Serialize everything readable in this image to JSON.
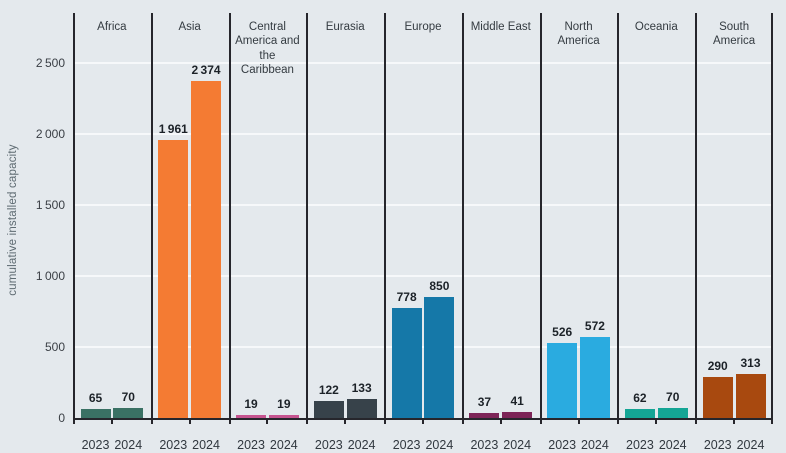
{
  "chart_data": {
    "type": "bar",
    "title": "",
    "ylabel": "cumulative installed capacity",
    "xlabel": "",
    "ylim": [
      0,
      2852
    ],
    "yticks": [
      0,
      500,
      1000,
      1500,
      2000,
      2500
    ],
    "grid": "horizontal-white-gridlines",
    "legend_position": "none",
    "categories": [
      "2023",
      "2024"
    ],
    "groups": [
      {
        "label": "Africa",
        "color": "#3a7164",
        "values": [
          65,
          70
        ]
      },
      {
        "label": "Asia",
        "color": "#f47b33",
        "values": [
          1961,
          2374
        ]
      },
      {
        "label": "Central America and the Caribbean",
        "color": "#c65490",
        "values": [
          19,
          19
        ]
      },
      {
        "label": "Eurasia",
        "color": "#37424a",
        "values": [
          122,
          133
        ]
      },
      {
        "label": "Europe",
        "color": "#1578a8",
        "values": [
          778,
          850
        ]
      },
      {
        "label": "Middle East",
        "color": "#7d2457",
        "values": [
          37,
          41
        ]
      },
      {
        "label": "North America",
        "color": "#2aabe0",
        "values": [
          526,
          572
        ]
      },
      {
        "label": "Oceania",
        "color": "#14a595",
        "values": [
          62,
          70
        ]
      },
      {
        "label": "South America",
        "color": "#a8490f",
        "values": [
          290,
          313
        ]
      }
    ]
  },
  "colors": {
    "background": "#e4e9ed",
    "axis_line": "#26262c",
    "gridline": "#f6f8fa",
    "value_label_text": "#1c2228",
    "tick_label_text": "#3a3f45",
    "header_text": "#343b41",
    "y_axis_title_text": "#5e6b72"
  }
}
